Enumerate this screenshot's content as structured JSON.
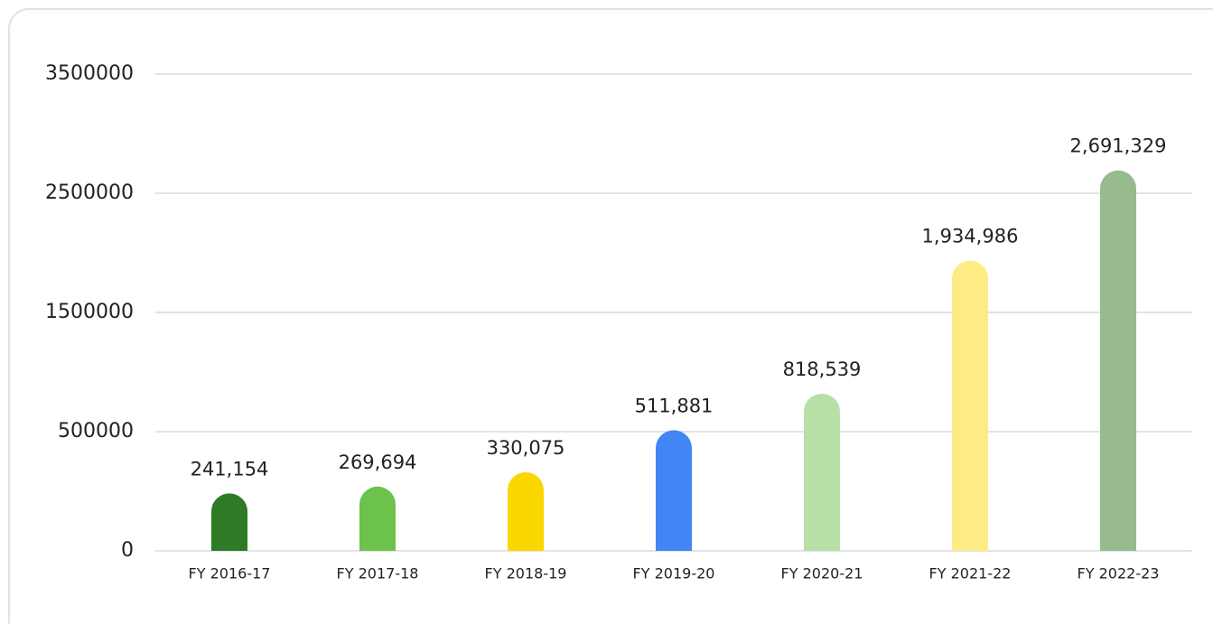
{
  "chart_data": {
    "type": "bar",
    "categories": [
      "FY 2016-17",
      "FY 2017-18",
      "FY 2018-19",
      "FY 2019-20",
      "FY 2020-21",
      "FY 2021-22",
      "FY 2022-23"
    ],
    "values": [
      241154,
      269694,
      330075,
      511881,
      818539,
      1934986,
      2691329
    ],
    "value_labels": [
      "241,154",
      "269,694",
      "330,075",
      "511,881",
      "818,539",
      "1,934,986",
      "2,691,329"
    ],
    "colors": [
      "#2e7a25",
      "#6cc24a",
      "#fbd700",
      "#4285f4",
      "#b7e0a6",
      "#feeb84",
      "#97bb8f"
    ],
    "ylim": [
      0,
      3500000
    ],
    "yticks": [
      0,
      500000,
      1500000,
      2500000,
      3500000
    ],
    "grid": true
  }
}
